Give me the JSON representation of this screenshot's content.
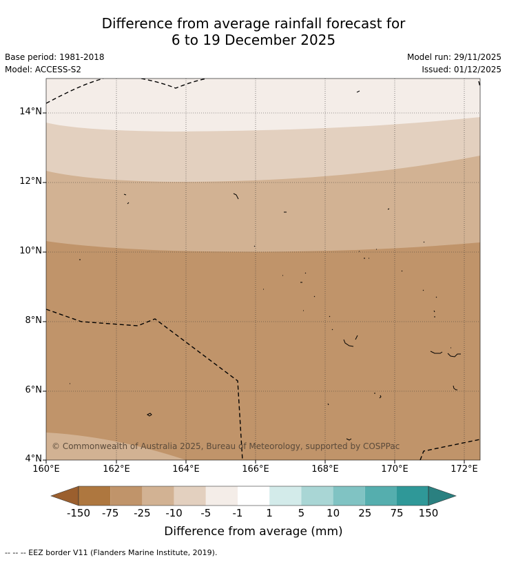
{
  "title": {
    "line1": "Difference from average rainfall forecast for",
    "line2": "6 to 19 December 2025"
  },
  "meta": {
    "base_period": "Base period: 1981-2018",
    "model": "Model: ACCESS-S2",
    "model_run": "Model run: 29/11/2025",
    "issued": "Issued: 01/12/2025"
  },
  "map": {
    "lat_labels": [
      "14°N",
      "12°N",
      "10°N",
      "8°N",
      "6°N",
      "4°N"
    ],
    "lon_labels": [
      "160°E",
      "162°E",
      "164°E",
      "166°E",
      "168°E",
      "170°E",
      "172°E"
    ],
    "copyright": "© Commonwealth of Australia 2025, Bureau of Meteorology, supported by COSPPac"
  },
  "colorbar": {
    "title": "Difference from average (mm)",
    "tick_labels": [
      "-150",
      "-75",
      "-25",
      "-10",
      "-5",
      "-1",
      "1",
      "5",
      "10",
      "25",
      "75",
      "150"
    ],
    "colors": {
      "below_min": "#9b5f2e",
      "bins": [
        "#ae773f",
        "#c0946a",
        "#d2b293",
        "#e3d0bf",
        "#f4ede8",
        "#ffffff",
        "#d3ebea",
        "#a9d6d5",
        "#80c3c3",
        "#55aeae",
        "#2f9898"
      ],
      "above_max": "#2a8080"
    }
  },
  "footnote": "-- -- -- EEZ border V11 (Flanders Marine Institute, 2019)."
}
